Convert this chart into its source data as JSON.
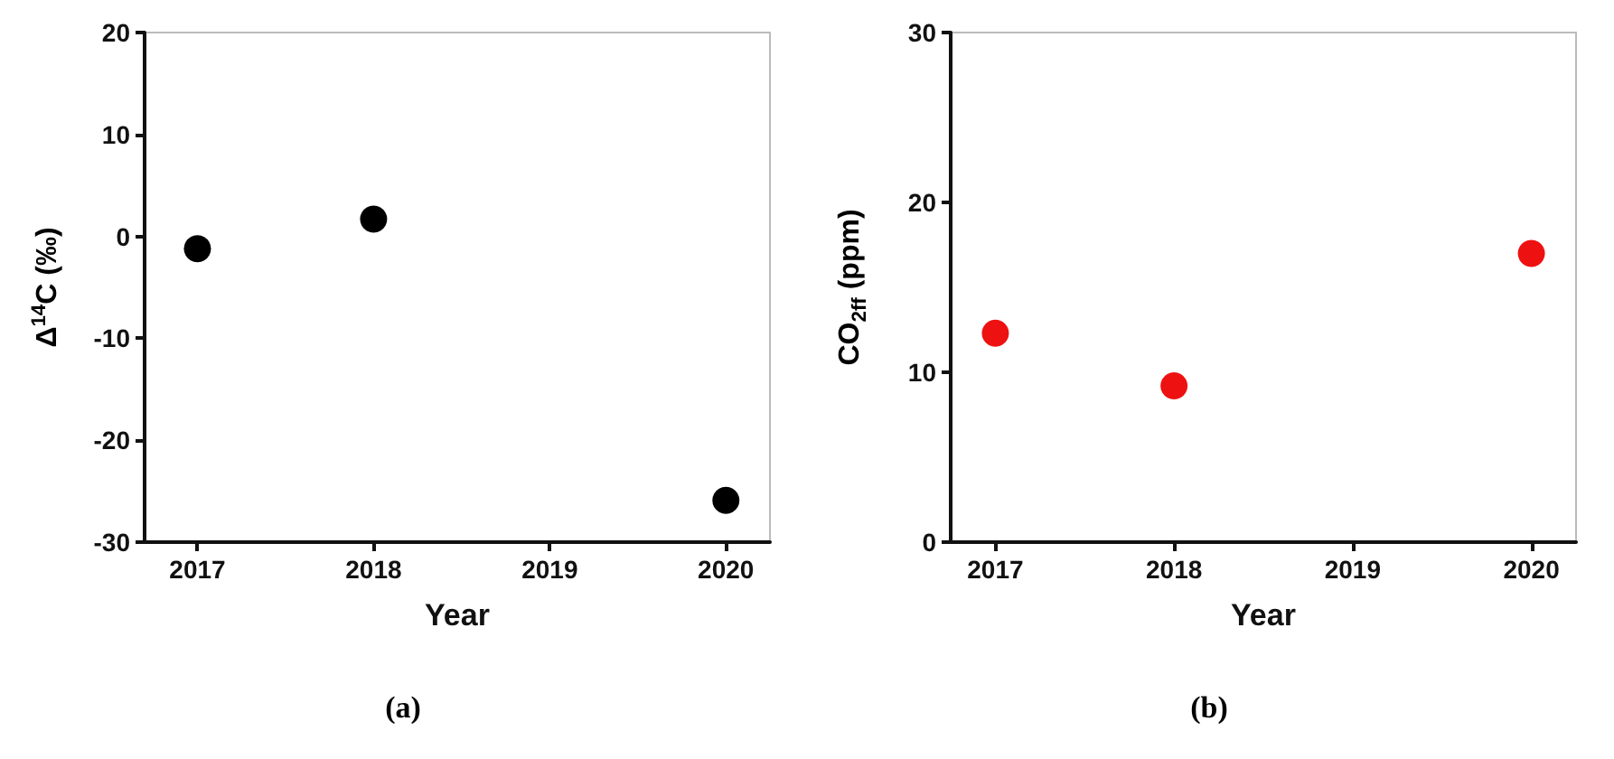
{
  "chart_data": [
    {
      "type": "scatter",
      "xlabel": "Year",
      "ylabel": "Δ$^{14}$C (‰)",
      "annotations": [
        "(a)"
      ],
      "x": [
        2017,
        2018,
        2020
      ],
      "values": [
        -1.2,
        1.7,
        -25.9
      ],
      "color": "#000000",
      "marker": "circle",
      "xlim": [
        2016.7,
        2020.25
      ],
      "xticks": [
        2017,
        2018,
        2019,
        2020
      ],
      "ylim": [
        -30,
        20
      ],
      "yticks": [
        -30,
        -20,
        -10,
        0,
        10,
        20
      ],
      "grid": false
    },
    {
      "type": "scatter",
      "xlabel": "Year",
      "ylabel": "CO$_{2ff}$ (ppm)",
      "annotations": [
        "(b)"
      ],
      "x": [
        2017,
        2018,
        2020
      ],
      "values": [
        12.3,
        9.2,
        17.0
      ],
      "color": "#ee1111",
      "marker": "circle",
      "xlim": [
        2016.75,
        2020.25
      ],
      "xticks": [
        2017,
        2018,
        2019,
        2020
      ],
      "ylim": [
        0,
        30
      ],
      "yticks": [
        0,
        10,
        20,
        30
      ],
      "grid": false
    }
  ]
}
